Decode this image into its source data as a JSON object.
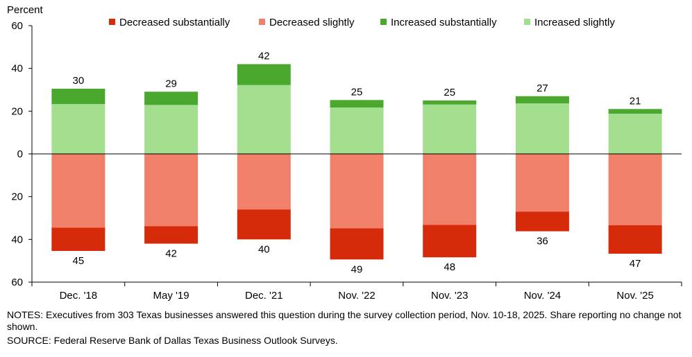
{
  "chart_data": {
    "type": "bar",
    "stacked": true,
    "ylabel": "Percent",
    "ylim": [
      -60,
      60
    ],
    "yticks": [
      60,
      40,
      20,
      0,
      20,
      40,
      60
    ],
    "categories": [
      "Dec. '18",
      "May '19",
      "Dec. '21",
      "Nov. '22",
      "Nov. '23",
      "Nov. '24",
      "Nov. '25"
    ],
    "legend": [
      {
        "name": "Decreased substantially",
        "color": "#d62b0a"
      },
      {
        "name": "Decreased slightly",
        "color": "#f0806a"
      },
      {
        "name": "Increased substantially",
        "color": "#4ba82e"
      },
      {
        "name": "Increased slightly",
        "color": "#a3df8e"
      }
    ],
    "series": [
      {
        "name": "Increased slightly",
        "values": [
          23.3,
          22.9,
          32.2,
          21.7,
          23.1,
          23.6,
          18.8
        ]
      },
      {
        "name": "Increased substantially",
        "values": [
          7.2,
          6.2,
          9.8,
          3.5,
          1.9,
          3.4,
          2.2
        ]
      },
      {
        "name": "Decreased slightly",
        "values": [
          -34.5,
          -33.8,
          -26.0,
          -34.8,
          -33.2,
          -27.0,
          -33.4
        ]
      },
      {
        "name": "Decreased substantially",
        "values": [
          -10.9,
          -8.2,
          -14.0,
          -14.6,
          -15.2,
          -9.2,
          -13.3
        ]
      }
    ],
    "total_labels": {
      "increased": [
        "30",
        "29",
        "42",
        "25",
        "25",
        "27",
        "21"
      ],
      "decreased": [
        "45",
        "42",
        "40",
        "49",
        "48",
        "36",
        "47"
      ]
    }
  },
  "notes": "NOTES: Executives from 303 Texas businesses answered this question during the survey collection period, Nov. 10-18, 2025. Share reporting no change not shown.",
  "source": "SOURCE: Federal Reserve Bank of Dallas Texas Business Outlook Surveys."
}
